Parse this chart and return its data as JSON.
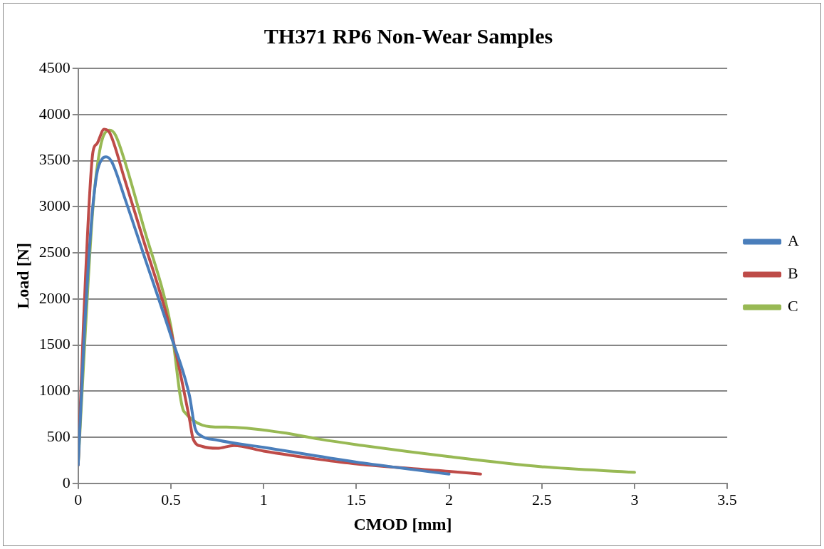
{
  "chart_data": {
    "type": "line",
    "title": "TH371 RP6 Non-Wear Samples",
    "xlabel": "CMOD [mm]",
    "ylabel": "Load [N]",
    "xlim": [
      0,
      3.5
    ],
    "xticks": [
      0,
      0.5,
      1,
      1.5,
      2,
      2.5,
      3,
      3.5
    ],
    "ylim": [
      0,
      4500
    ],
    "yticks": [
      0,
      500,
      1000,
      1500,
      2000,
      2500,
      3000,
      3500,
      4000,
      4500
    ],
    "grid": "y",
    "legend": "right",
    "marker": "none",
    "series": [
      {
        "name": "A",
        "color": "#4a7ebb",
        "x": [
          0,
          0.03,
          0.07,
          0.1,
          0.13,
          0.15,
          0.18,
          0.25,
          0.35,
          0.5,
          0.6,
          0.63,
          0.66,
          0.75,
          1,
          1.5,
          2
        ],
        "values": [
          200,
          1500,
          2800,
          3350,
          3520,
          3540,
          3490,
          3100,
          2500,
          1600,
          950,
          600,
          520,
          470,
          390,
          230,
          100
        ]
      },
      {
        "name": "B",
        "color": "#be4b48",
        "x": [
          0,
          0.03,
          0.08,
          0.1,
          0.14,
          0.17,
          0.25,
          0.35,
          0.5,
          0.6,
          0.62,
          0.67,
          0.75,
          0.84,
          1,
          1.3,
          1.5,
          2,
          2.17
        ],
        "values": [
          200,
          1800,
          3600,
          3680,
          3840,
          3800,
          3300,
          2650,
          1650,
          700,
          480,
          400,
          380,
          410,
          350,
          260,
          210,
          130,
          100
        ]
      },
      {
        "name": "C",
        "color": "#98b954",
        "x": [
          0,
          0.04,
          0.08,
          0.12,
          0.17,
          0.2,
          0.25,
          0.35,
          0.5,
          0.57,
          0.77,
          0.8,
          1.1,
          1.3,
          1.5,
          2,
          2.5,
          3
        ],
        "values": [
          200,
          1700,
          3000,
          3650,
          3830,
          3780,
          3500,
          2800,
          1700,
          780,
          610,
          610,
          550,
          480,
          420,
          290,
          180,
          120
        ]
      }
    ]
  }
}
